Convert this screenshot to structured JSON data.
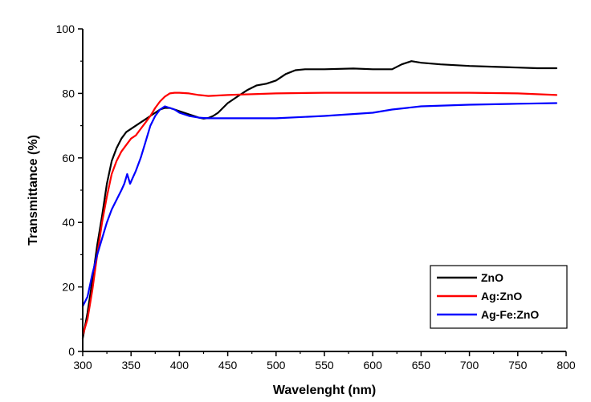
{
  "chart_data": {
    "type": "line",
    "title": "",
    "xlabel": "Wavelenght (nm)",
    "ylabel": "Transmittance (%)",
    "xlim": [
      300,
      800
    ],
    "ylim": [
      0,
      100
    ],
    "x_ticks": [
      300,
      350,
      400,
      450,
      500,
      550,
      600,
      650,
      700,
      750,
      800
    ],
    "y_ticks": [
      0,
      20,
      40,
      60,
      80,
      100
    ],
    "grid": false,
    "legend_position": "bottom-right",
    "series": [
      {
        "name": "ZnO",
        "color": "#000000",
        "x": [
          300,
          305,
          310,
          315,
          320,
          325,
          330,
          335,
          340,
          345,
          350,
          355,
          360,
          365,
          370,
          375,
          380,
          385,
          390,
          395,
          400,
          405,
          410,
          415,
          420,
          425,
          430,
          435,
          440,
          445,
          450,
          460,
          470,
          480,
          490,
          500,
          510,
          520,
          530,
          550,
          580,
          600,
          620,
          630,
          640,
          650,
          670,
          700,
          720,
          750,
          770,
          790
        ],
        "y": [
          4,
          12,
          22,
          33,
          42,
          52,
          59,
          63,
          66,
          68,
          69,
          70,
          71,
          72,
          73,
          74,
          75,
          75.5,
          75.5,
          75,
          74.5,
          74,
          73.5,
          73,
          72.5,
          72.2,
          72.4,
          73,
          74,
          75.5,
          77,
          79,
          81,
          82.5,
          83,
          84,
          86,
          87.2,
          87.5,
          87.5,
          87.7,
          87.5,
          87.5,
          89,
          90,
          89.5,
          89,
          88.5,
          88.3,
          88,
          87.8,
          87.8
        ]
      },
      {
        "name": "Ag:ZnO",
        "color": "#ff0000",
        "x": [
          300,
          305,
          310,
          315,
          320,
          325,
          330,
          335,
          340,
          345,
          350,
          355,
          360,
          365,
          370,
          375,
          380,
          385,
          390,
          395,
          400,
          410,
          420,
          430,
          450,
          500,
          550,
          600,
          650,
          700,
          750,
          790
        ],
        "y": [
          5,
          10,
          19,
          30,
          40,
          48,
          55,
          59,
          62,
          64,
          66,
          67,
          69,
          71,
          73,
          75.5,
          77.5,
          79,
          80,
          80.2,
          80.2,
          80,
          79.5,
          79.2,
          79.5,
          80,
          80.2,
          80.2,
          80.2,
          80.2,
          80,
          79.5
        ]
      },
      {
        "name": "Ag-Fe:ZnO",
        "color": "#0000ff",
        "x": [
          300,
          305,
          310,
          315,
          320,
          325,
          330,
          335,
          340,
          343,
          346,
          349,
          352,
          355,
          360,
          365,
          370,
          375,
          380,
          385,
          390,
          395,
          400,
          410,
          420,
          430,
          450,
          500,
          550,
          600,
          620,
          650,
          700,
          750,
          790
        ],
        "y": [
          14,
          17,
          24,
          30,
          35,
          40,
          44,
          47,
          50,
          52,
          55,
          52,
          54,
          56,
          60,
          65,
          70,
          73,
          75,
          76,
          75.5,
          75,
          74,
          73,
          72.5,
          72.3,
          72.3,
          72.3,
          73,
          74,
          75,
          76,
          76.5,
          76.8,
          77
        ]
      }
    ]
  }
}
